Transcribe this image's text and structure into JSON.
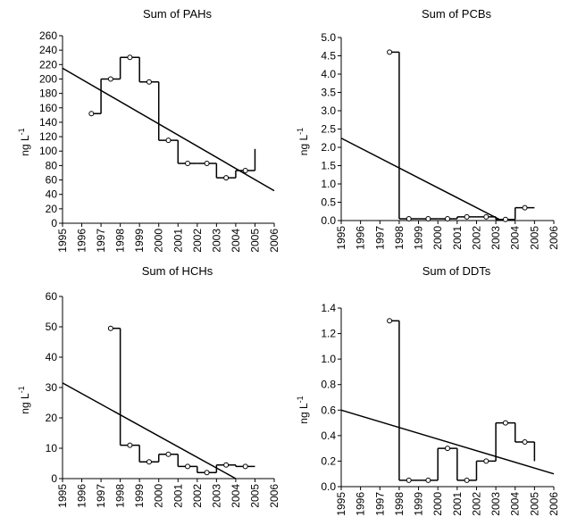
{
  "chart_data": [
    {
      "type": "step",
      "title": "Sum of PAHs",
      "y_label": "ng L",
      "y_label_sup": "-1",
      "color": "#000000",
      "xlim": [
        1995,
        2006
      ],
      "xticks": [
        1995,
        1996,
        1997,
        1998,
        1999,
        2000,
        2001,
        2002,
        2003,
        2004,
        2005,
        2006
      ],
      "ylim": [
        0,
        260
      ],
      "yticks": [
        0,
        20,
        40,
        60,
        80,
        100,
        120,
        140,
        160,
        180,
        200,
        220,
        240,
        260
      ],
      "x": [
        1996.5,
        1997.5,
        1998.5,
        1999.5,
        2000.5,
        2001.5,
        2002.5,
        2003.5,
        2004.5
      ],
      "values": [
        152,
        200,
        230,
        196,
        115,
        83,
        83,
        63,
        73
      ],
      "tail": 103,
      "trend": {
        "x": [
          1995,
          2006
        ],
        "values": [
          215,
          45
        ]
      }
    },
    {
      "type": "step",
      "title": "Sum of PCBs",
      "y_label": "ng L",
      "y_label_sup": "-1",
      "color": "#000000",
      "xlim": [
        1995,
        2006
      ],
      "xticks": [
        1995,
        1996,
        1997,
        1998,
        1999,
        2000,
        2001,
        2002,
        2003,
        2004,
        2005,
        2006
      ],
      "ylim": [
        0,
        5
      ],
      "yticks": [
        {
          "value": 0,
          "label": "0.0"
        },
        0.5,
        {
          "value": 1,
          "label": "1.0"
        },
        1.5,
        {
          "value": 2,
          "label": "2.0"
        },
        2.5,
        {
          "value": 3,
          "label": "3.0"
        },
        3.5,
        {
          "value": 4,
          "label": "4.0"
        },
        4.5,
        {
          "value": 5,
          "label": "5.0"
        }
      ],
      "x": [
        1997.5,
        1998.5,
        1999.5,
        2000.5,
        2001.5,
        2002.5,
        2003.5,
        2004.5
      ],
      "values": [
        4.6,
        0.05,
        0.05,
        0.05,
        0.1,
        0.1,
        0.03,
        0.35
      ],
      "trend": {
        "x": [
          1995,
          2003.3
        ],
        "values": [
          2.25,
          0
        ]
      }
    },
    {
      "type": "step",
      "title": "Sum of HCHs",
      "y_label": "ng L",
      "y_label_sup": "-1",
      "color": "#000000",
      "xlim": [
        1995,
        2006
      ],
      "xticks": [
        1995,
        1996,
        1997,
        1998,
        1999,
        2000,
        2001,
        2002,
        2003,
        2004,
        2005,
        2006
      ],
      "ylim": [
        0,
        60
      ],
      "yticks": [
        0,
        10,
        20,
        30,
        40,
        50,
        60
      ],
      "x": [
        1997.5,
        1998.5,
        1999.5,
        2000.5,
        2001.5,
        2002.5,
        2003.5,
        2004.5
      ],
      "values": [
        49.5,
        11,
        5.5,
        8,
        4,
        2,
        4.5,
        4
      ],
      "trend": {
        "x": [
          1995,
          2004
        ],
        "values": [
          31.5,
          0
        ]
      }
    },
    {
      "type": "step",
      "title": "Sum of DDTs",
      "y_label": "ng L",
      "y_label_sup": "-1",
      "color": "#000000",
      "xlim": [
        1995,
        2006
      ],
      "xticks": [
        1995,
        1996,
        1997,
        1998,
        1999,
        2000,
        2001,
        2002,
        2003,
        2004,
        2005,
        2006
      ],
      "ylim": [
        0,
        1.4
      ],
      "yticks": [
        {
          "value": 0,
          "label": "0.0"
        },
        0.2,
        0.4,
        0.6,
        0.8,
        {
          "value": 1,
          "label": "1.0"
        },
        1.2,
        1.4
      ],
      "x": [
        1997.5,
        1998.5,
        1999.5,
        2000.5,
        2001.5,
        2002.5,
        2003.5,
        2004.5
      ],
      "values": [
        1.3,
        0.05,
        0.05,
        0.3,
        0.05,
        0.2,
        0.5,
        0.35
      ],
      "tail": 0.2,
      "trend": {
        "x": [
          1995,
          2006
        ],
        "values": [
          0.6,
          0.1
        ]
      }
    }
  ]
}
